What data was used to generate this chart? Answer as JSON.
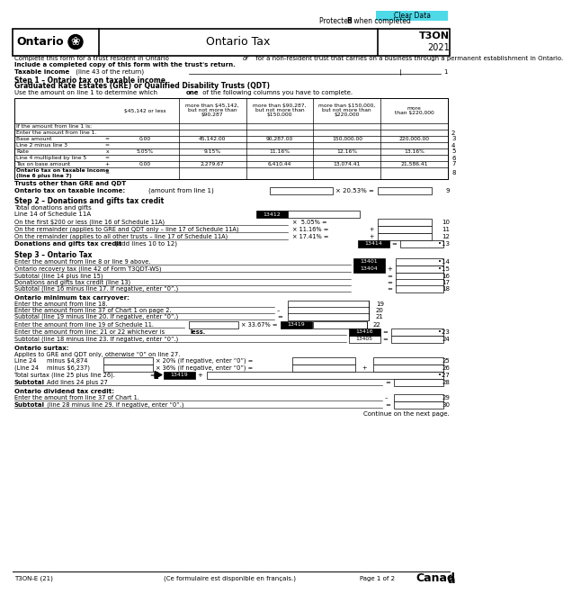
{
  "title": "Ontario Tax",
  "form_code": "T3ON",
  "year": "2021",
  "header_line1": "Complete this form for a trust resident in Ontario ",
  "header_line1b": "or",
  "header_line1c": " for a non-resident trust that carries on a business through a permanent establishment in Ontario.",
  "header_line2": "Include a completed copy of this form with the trust's return.",
  "taxable_income_label": "Taxable income",
  "taxable_income_sub": " (line 43 of the return)",
  "step1_title": "Step 1 – Ontario tax on taxable income",
  "step1_subtitle": "Graduated Rate Estates (GRE) or Qualified Disability Trusts (QDT)",
  "step1_instruction": "Use the amount on line 1 to determine which ",
  "step1_instruction_bold": "one",
  "step1_instruction2": " of the following columns you have to complete.",
  "col_headers": [
    "$45,142 or less",
    "more than $45,142,\nbut not more than\n$90,287",
    "more than $90,287,\nbut not more than\n$150,000",
    "more than $150,000,\nbut not more than\n$220,000",
    "more\nthan $220,000"
  ],
  "row_labels": [
    "If the amount from line 1 is:",
    "Enter the amount from line 1.",
    "Base amount",
    "Line 2 minus line 3",
    "Rate",
    "Line 4 multiplied by line 5",
    "Tax on base amount",
    "Ontario tax on taxable income\n(line 6 plus line 7)"
  ],
  "row_numbers": [
    "",
    "2",
    "3",
    "4",
    "5",
    "6",
    "7",
    "8"
  ],
  "row_ops": [
    "",
    "",
    "=",
    "=",
    "x",
    "=",
    "+",
    "="
  ],
  "col1_vals": [
    "",
    "",
    "0.00",
    "",
    "5.05%",
    "",
    "0.00",
    ""
  ],
  "col2_vals": [
    "",
    "",
    "45,142.00",
    "",
    "9.15%",
    "",
    "2,279.67",
    ""
  ],
  "col3_vals": [
    "",
    "",
    "90,287.00",
    "",
    "11.16%",
    "",
    "6,410.44",
    ""
  ],
  "col4_vals": [
    "",
    "",
    "150,000.00",
    "",
    "12.16%",
    "",
    "13,074.41",
    ""
  ],
  "col5_vals": [
    "",
    "",
    "220,000.00",
    "",
    "13.16%",
    "",
    "21,586.41",
    ""
  ],
  "trusts_other_label": "Trusts other than GRE and QDT",
  "ontario_tax_label": "Ontario tax on taxable income:",
  "step2_title": "Step 2 – Donations and gifts tax credit",
  "step3_title": "Step 3 – Ontario Tax",
  "footer_text": "Continue on the next page.",
  "page_label": "Page 1 of 2",
  "form_id": "T3ON-E (21)",
  "french_label": "(Ce formulaire est disponible en français.)"
}
